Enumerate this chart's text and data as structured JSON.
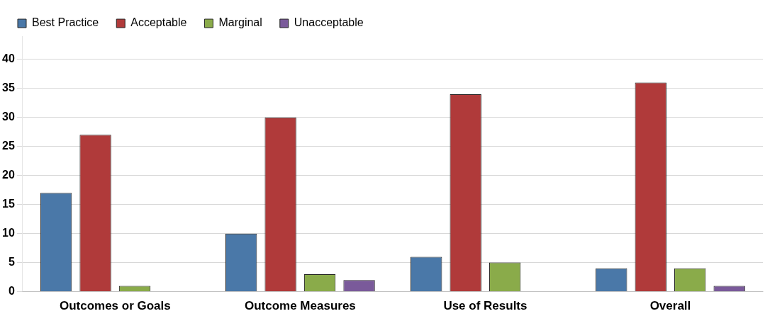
{
  "chart_data": {
    "type": "bar",
    "categories": [
      "Outcomes or Goals",
      "Outcome Measures",
      "Use of Results",
      "Overall"
    ],
    "series": [
      {
        "name": "Best Practice",
        "color": "#4a78a8",
        "values": [
          17,
          10,
          6,
          4
        ]
      },
      {
        "name": "Acceptable",
        "color": "#b03a3a",
        "values": [
          27,
          30,
          34,
          36
        ]
      },
      {
        "name": "Marginal",
        "color": "#8aab4a",
        "values": [
          1,
          3,
          5,
          4
        ]
      },
      {
        "name": "Unacceptable",
        "color": "#7a5a9a",
        "values": [
          0,
          2,
          0,
          1
        ]
      }
    ],
    "ylim": [
      0,
      44
    ],
    "yticks": [
      0,
      5,
      10,
      15,
      20,
      25,
      30,
      35,
      40
    ],
    "grid": "y",
    "legend": "top left"
  }
}
